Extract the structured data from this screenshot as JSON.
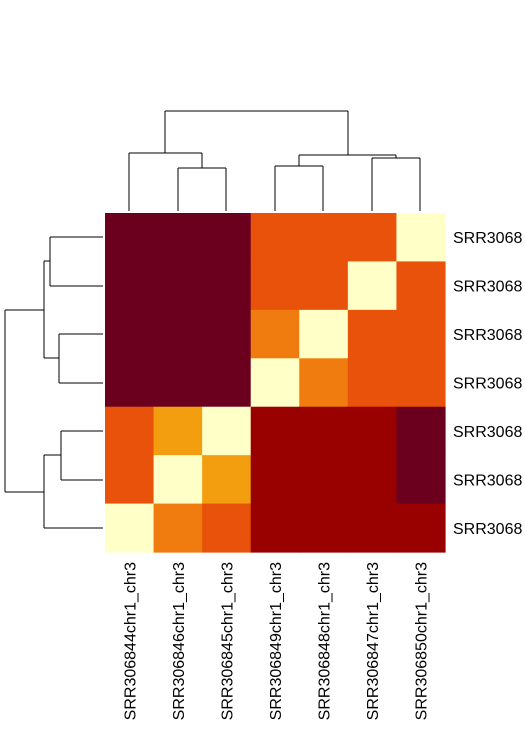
{
  "chart_data": {
    "type": "heatmap",
    "title": "",
    "columns": [
      "SRR306844chr1_chr3",
      "SRR306846chr1_chr3",
      "SRR306845chr1_chr3",
      "SRR306849chr1_chr3",
      "SRR306848chr1_chr3",
      "SRR306847chr1_chr3",
      "SRR306850chr1_chr3"
    ],
    "rows": [
      "SRR3068",
      "SRR3068",
      "SRR3068",
      "SRR3068",
      "SRR3068",
      "SRR3068",
      "SRR3068"
    ],
    "values": [
      [
        7,
        7,
        7,
        4,
        4,
        4,
        1
      ],
      [
        7,
        7,
        7,
        4,
        4,
        1,
        4
      ],
      [
        7,
        7,
        7,
        3,
        1,
        4,
        4
      ],
      [
        7,
        7,
        7,
        1,
        3,
        4,
        4
      ],
      [
        4,
        2,
        1,
        6,
        6,
        6,
        7
      ],
      [
        4,
        1,
        2,
        6,
        6,
        6,
        7
      ],
      [
        1,
        3,
        4,
        6,
        6,
        6,
        6
      ]
    ],
    "value_scale": "relative intensity level (1 = lightest, 7 = darkest)",
    "palette": [
      "#ffffc8",
      "#f29e0e",
      "#f07c0f",
      "#e8520a",
      "#c4230c",
      "#990000",
      "#6b001e"
    ],
    "row_dendrogram": true,
    "column_dendrogram": true,
    "legend": "none"
  }
}
